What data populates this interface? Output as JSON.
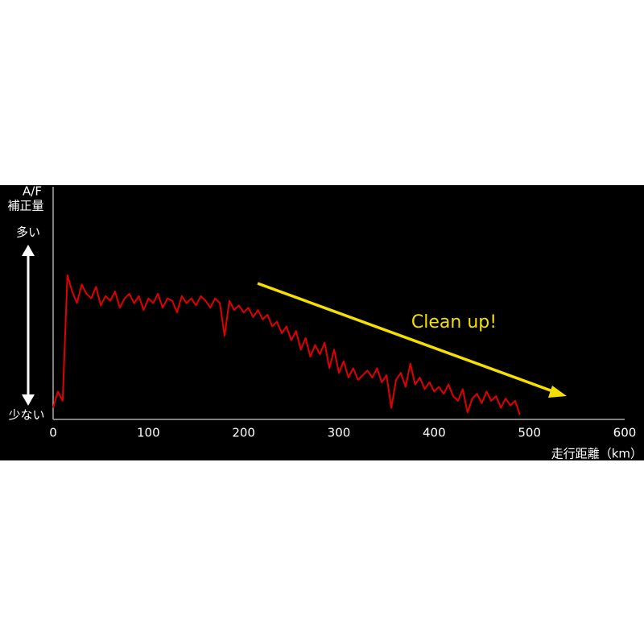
{
  "chart_data": {
    "type": "line",
    "y_label_lines": [
      "A/F",
      "補正量"
    ],
    "y_high_label": "多い",
    "y_low_label": "少ない",
    "annotation": "Clean up!",
    "x_label": "走行距離（km）",
    "color": "#e00000",
    "xlim": [
      0,
      600
    ],
    "xticks": [
      0,
      100,
      200,
      300,
      400,
      500,
      600
    ],
    "ylim": [
      0,
      100
    ],
    "x": [
      0,
      5,
      10,
      15,
      20,
      25,
      30,
      35,
      40,
      45,
      50,
      55,
      60,
      65,
      70,
      75,
      80,
      85,
      90,
      95,
      100,
      105,
      110,
      115,
      120,
      125,
      130,
      135,
      140,
      145,
      150,
      155,
      160,
      165,
      170,
      175,
      180,
      185,
      190,
      195,
      200,
      205,
      210,
      215,
      220,
      225,
      230,
      235,
      240,
      245,
      250,
      255,
      260,
      265,
      270,
      275,
      280,
      285,
      290,
      295,
      300,
      305,
      310,
      315,
      320,
      325,
      330,
      335,
      340,
      345,
      350,
      355,
      360,
      365,
      370,
      375,
      380,
      385,
      390,
      395,
      400,
      405,
      410,
      415,
      420,
      425,
      430,
      435,
      440,
      445,
      450,
      455,
      460,
      465,
      470,
      475,
      480,
      485,
      490
    ],
    "values": [
      5,
      12,
      8,
      62,
      55,
      50,
      58,
      54,
      52,
      57,
      49,
      53,
      51,
      55,
      48,
      52,
      54,
      50,
      53,
      47,
      52,
      50,
      54,
      48,
      52,
      51,
      46,
      53,
      50,
      52,
      49,
      53,
      51,
      48,
      52,
      50,
      36,
      51,
      47,
      49,
      46,
      48,
      44,
      47,
      43,
      45,
      40,
      42,
      37,
      40,
      34,
      38,
      30,
      35,
      27,
      32,
      28,
      33,
      22,
      30,
      20,
      25,
      18,
      22,
      17,
      19,
      21,
      18,
      22,
      16,
      19,
      5,
      17,
      20,
      14,
      24,
      15,
      18,
      13,
      16,
      12,
      14,
      11,
      15,
      10,
      8,
      13,
      3,
      9,
      11,
      7,
      12,
      8,
      10,
      5,
      9,
      6,
      8,
      2
    ]
  }
}
